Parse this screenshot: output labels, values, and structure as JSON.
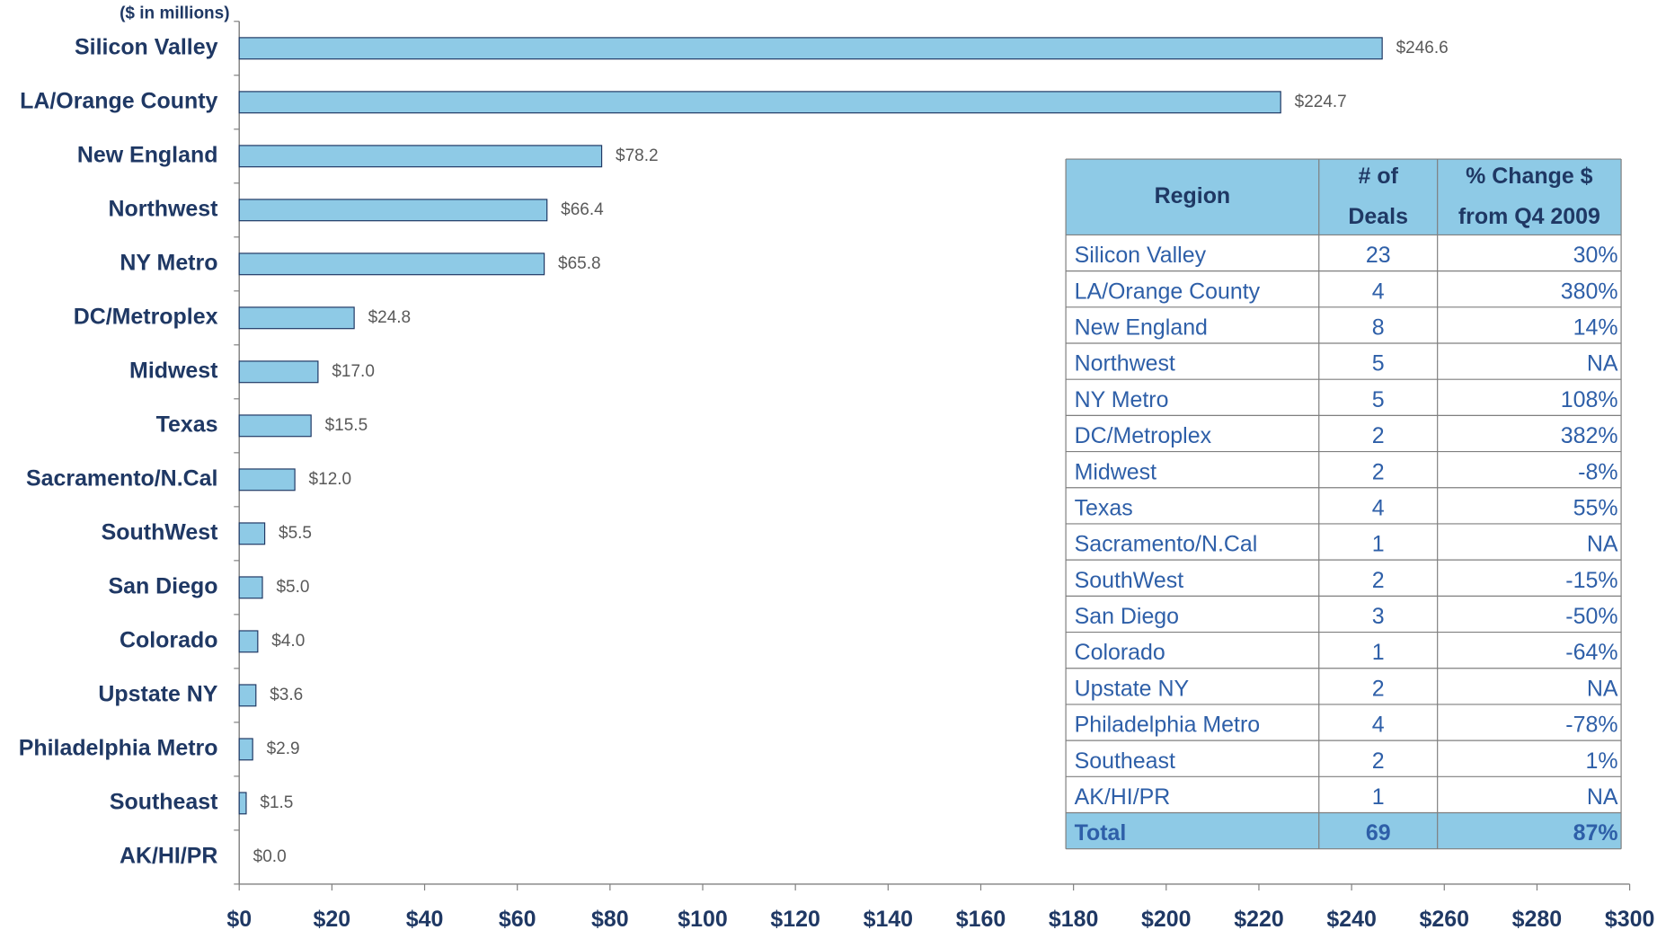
{
  "chart_data": {
    "type": "bar",
    "orientation": "horizontal",
    "subtitle": "($ in millions)",
    "categories": [
      "Silicon Valley",
      "LA/Orange County",
      "New England",
      "Northwest",
      "NY Metro",
      "DC/Metroplex",
      "Midwest",
      "Texas",
      "Sacramento/N.Cal",
      "SouthWest",
      "San Diego",
      "Colorado",
      "Upstate NY",
      "Philadelphia Metro",
      "Southeast",
      "AK/HI/PR"
    ],
    "values": [
      246.6,
      224.7,
      78.2,
      66.4,
      65.8,
      24.8,
      17.0,
      15.5,
      12.0,
      5.5,
      5.0,
      4.0,
      3.6,
      2.9,
      1.5,
      0.0
    ],
    "value_labels": [
      "$246.6",
      "$224.7",
      "$78.2",
      "$66.4",
      "$65.8",
      "$24.8",
      "$17.0",
      "$15.5",
      "$12.0",
      "$5.5",
      "$5.0",
      "$4.0",
      "$3.6",
      "$2.9",
      "$1.5",
      "$0.0"
    ],
    "color": "#8ecae6",
    "xlim": [
      0,
      300
    ],
    "xticks": [
      {
        "value": 0,
        "label": "$0"
      },
      {
        "value": 20,
        "label": "$20"
      },
      {
        "value": 40,
        "label": "$40"
      },
      {
        "value": 60,
        "label": "$60"
      },
      {
        "value": 80,
        "label": "$80"
      },
      {
        "value": 100,
        "label": "$100"
      },
      {
        "value": 120,
        "label": "$120"
      },
      {
        "value": 140,
        "label": "$140"
      },
      {
        "value": 160,
        "label": "$160"
      },
      {
        "value": 180,
        "label": "$180"
      },
      {
        "value": 200,
        "label": "$200"
      },
      {
        "value": 220,
        "label": "$220"
      },
      {
        "value": 240,
        "label": "$240"
      },
      {
        "value": 260,
        "label": "$260"
      },
      {
        "value": 280,
        "label": "$280"
      },
      {
        "value": 300,
        "label": "$300"
      }
    ],
    "grid": false
  },
  "table": {
    "header": [
      [
        "Region"
      ],
      [
        "# of",
        "Deals"
      ],
      [
        "% Change $",
        "from Q4 2009"
      ]
    ],
    "rows": [
      [
        "Silicon Valley",
        "23",
        "30%"
      ],
      [
        "LA/Orange County",
        "4",
        "380%"
      ],
      [
        "New England",
        "8",
        "14%"
      ],
      [
        "Northwest",
        "5",
        "NA"
      ],
      [
        "NY Metro",
        "5",
        "108%"
      ],
      [
        "DC/Metroplex",
        "2",
        "382%"
      ],
      [
        "Midwest",
        "2",
        "-8%"
      ],
      [
        "Texas",
        "4",
        "55%"
      ],
      [
        "Sacramento/N.Cal",
        "1",
        "NA"
      ],
      [
        "SouthWest",
        "2",
        "-15%"
      ],
      [
        "San Diego",
        "3",
        "-50%"
      ],
      [
        "Colorado",
        "1",
        "-64%"
      ],
      [
        "Upstate NY",
        "2",
        "NA"
      ],
      [
        "Philadelphia Metro",
        "4",
        "-78%"
      ],
      [
        "Southeast",
        "2",
        "1%"
      ],
      [
        "AK/HI/PR",
        "1",
        "NA"
      ]
    ],
    "total": [
      "Total",
      "69",
      "87%"
    ]
  }
}
